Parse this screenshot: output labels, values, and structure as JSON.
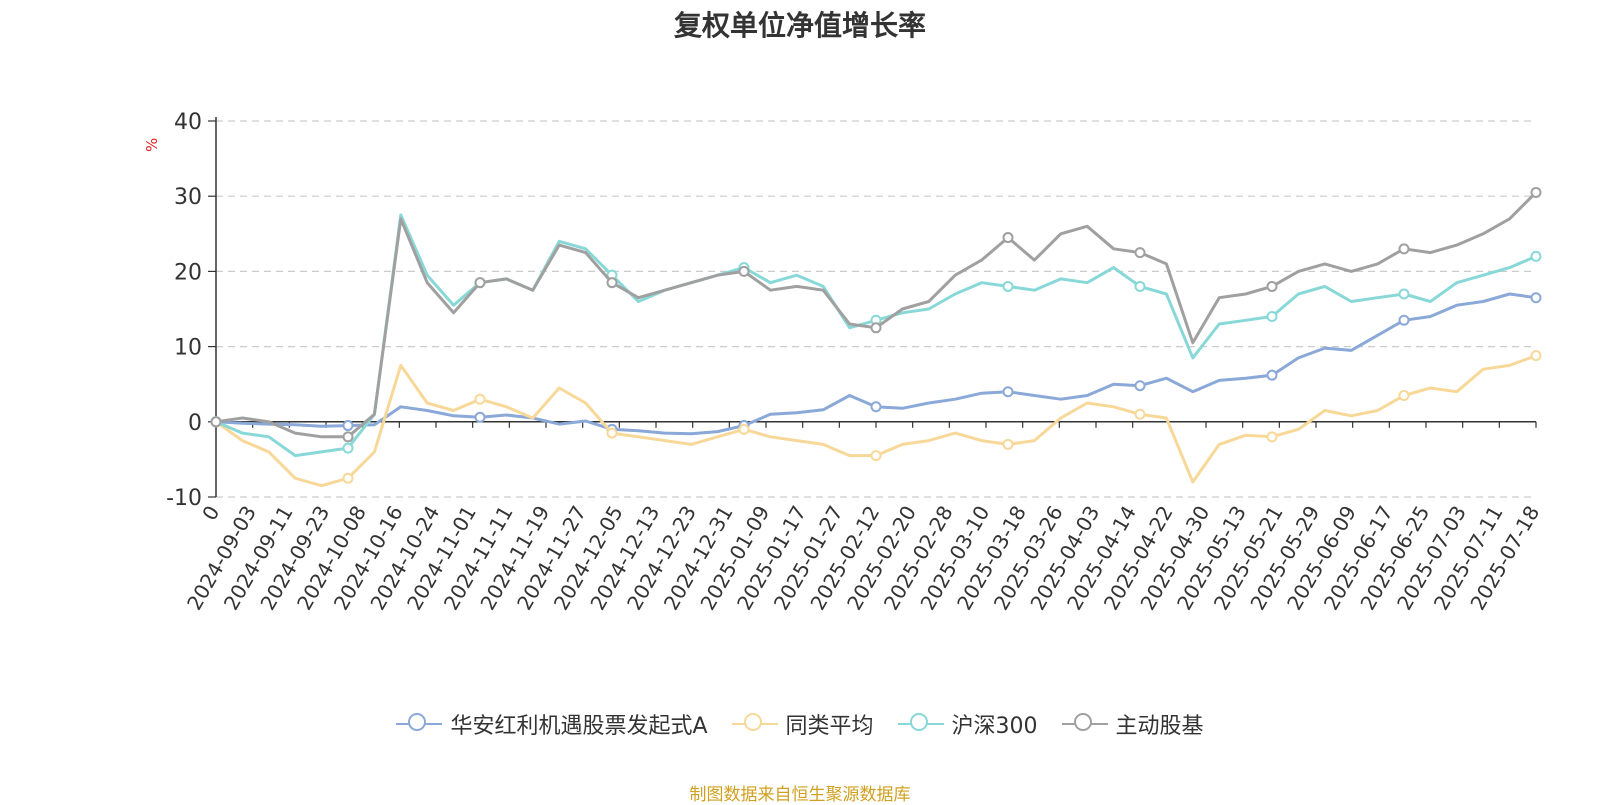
{
  "chart_data": {
    "type": "line",
    "title": "复权单位净值增长率",
    "ylabel": "%",
    "ylim": [
      -10,
      40
    ],
    "yticks": [
      -10,
      0,
      10,
      20,
      30,
      40
    ],
    "grid": true,
    "legend_position": "bottom",
    "x_tick_labels": [
      "0",
      "2024-09-03",
      "2024-09-11",
      "2024-09-23",
      "2024-10-08",
      "2024-10-16",
      "2024-10-24",
      "2024-11-01",
      "2024-11-11",
      "2024-11-19",
      "2024-11-27",
      "2024-12-05",
      "2024-12-13",
      "2024-12-23",
      "2024-12-31",
      "2025-01-09",
      "2025-01-17",
      "2025-01-27",
      "2025-02-12",
      "2025-02-20",
      "2025-02-28",
      "2025-03-10",
      "2025-03-18",
      "2025-03-26",
      "2025-04-03",
      "2025-04-14",
      "2025-04-22",
      "2025-04-30",
      "2025-05-13",
      "2025-05-21",
      "2025-05-29",
      "2025-06-09",
      "2025-06-17",
      "2025-06-25",
      "2025-07-03",
      "2025-07-11",
      "2025-07-18"
    ],
    "series": [
      {
        "name": "华安红利机遇股票发起式A",
        "color": "#8aa8d8",
        "values": [
          0.0,
          -0.2,
          -0.3,
          -0.4,
          -0.6,
          -0.5,
          -0.4,
          2.0,
          1.5,
          0.8,
          0.6,
          0.9,
          0.5,
          -0.3,
          0.1,
          -1.0,
          -1.2,
          -1.5,
          -1.6,
          -1.3,
          -0.5,
          1.0,
          1.2,
          1.6,
          3.5,
          2.0,
          1.8,
          2.5,
          3.0,
          3.8,
          4.0,
          3.5,
          3.0,
          3.5,
          5.0,
          4.8,
          5.8,
          4.0,
          5.5,
          5.8,
          6.2,
          8.5,
          9.8,
          9.5,
          11.5,
          13.5,
          14.0,
          15.5,
          16.0,
          17.0,
          16.5
        ]
      },
      {
        "name": "同类平均",
        "color": "#f8d898",
        "values": [
          0.0,
          -2.5,
          -4.0,
          -7.5,
          -8.5,
          -7.5,
          -4.0,
          7.5,
          2.5,
          1.5,
          3.0,
          2.0,
          0.5,
          4.5,
          2.5,
          -1.5,
          -2.0,
          -2.5,
          -3.0,
          -2.0,
          -1.0,
          -2.0,
          -2.5,
          -3.0,
          -4.5,
          -4.5,
          -3.0,
          -2.5,
          -1.5,
          -2.5,
          -3.0,
          -2.5,
          0.5,
          2.5,
          2.0,
          1.0,
          0.5,
          -8.0,
          -3.0,
          -1.8,
          -2.0,
          -1.0,
          1.5,
          0.8,
          1.5,
          3.5,
          4.5,
          4.0,
          7.0,
          7.5,
          8.8
        ]
      },
      {
        "name": "沪深300",
        "color": "#88d8d8",
        "values": [
          0.0,
          -1.5,
          -2.0,
          -4.5,
          -4.0,
          -3.5,
          1.0,
          27.5,
          19.5,
          15.5,
          18.5,
          19.0,
          17.5,
          24.0,
          23.0,
          19.5,
          16.0,
          17.5,
          18.5,
          19.5,
          20.5,
          18.5,
          19.5,
          18.0,
          12.5,
          13.5,
          14.5,
          15.0,
          17.0,
          18.5,
          18.0,
          17.5,
          19.0,
          18.5,
          20.5,
          18.0,
          17.0,
          8.5,
          13.0,
          13.5,
          14.0,
          17.0,
          18.0,
          16.0,
          16.5,
          17.0,
          16.0,
          18.5,
          19.5,
          20.5,
          22.0
        ]
      },
      {
        "name": "主动股基",
        "color": "#a0a0a0",
        "values": [
          0.0,
          0.5,
          0.0,
          -1.5,
          -2.0,
          -2.0,
          1.0,
          27.0,
          18.5,
          14.5,
          18.5,
          19.0,
          17.5,
          23.5,
          22.5,
          18.5,
          16.5,
          17.5,
          18.5,
          19.5,
          20.0,
          17.5,
          18.0,
          17.5,
          13.0,
          12.5,
          15.0,
          16.0,
          19.5,
          21.5,
          24.5,
          21.5,
          25.0,
          26.0,
          23.0,
          22.5,
          21.0,
          10.5,
          16.5,
          17.0,
          18.0,
          20.0,
          21.0,
          20.0,
          21.0,
          23.0,
          22.5,
          23.5,
          25.0,
          27.0,
          30.5
        ]
      }
    ]
  },
  "source_note": "制图数据来自恒生聚源数据库"
}
